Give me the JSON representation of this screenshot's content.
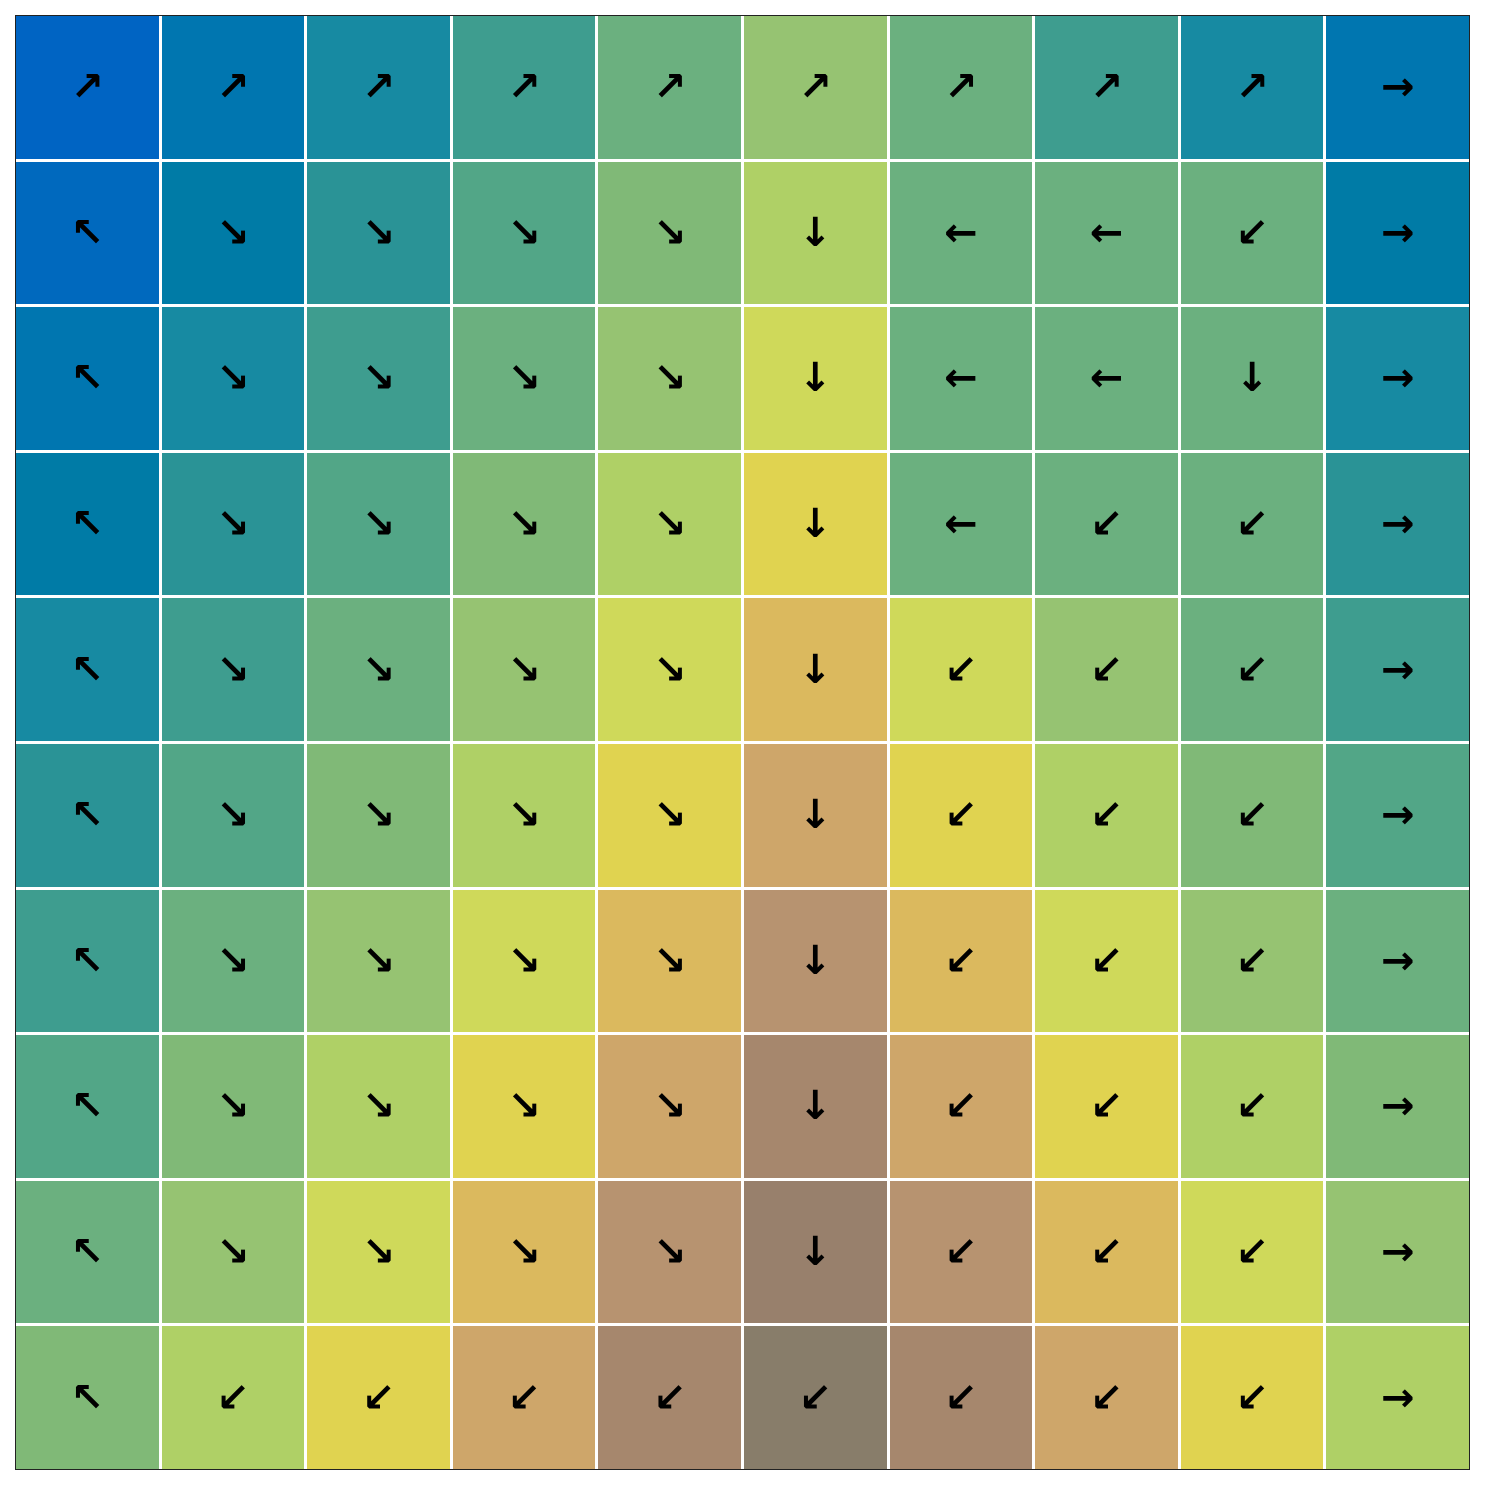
{
  "grid": {
    "rows": 10,
    "cols": 10,
    "colors": [
      [
        "#0064c3",
        "#0076b0",
        "#178aa2",
        "#3e9d8f",
        "#6bb07f",
        "#96c372",
        "#6bb07f",
        "#3e9d8f",
        "#178aa2",
        "#0076b0"
      ],
      [
        "#0069be",
        "#007ba6",
        "#2a9396",
        "#52a687",
        "#80b977",
        "#afd066",
        "#6bb07f",
        "#6bb07f",
        "#6bb07f",
        "#007ba6"
      ],
      [
        "#0076b0",
        "#178aa2",
        "#3e9d8f",
        "#6bb07f",
        "#96c372",
        "#cfd95a",
        "#6bb07f",
        "#6bb07f",
        "#6bb07f",
        "#178aa2"
      ],
      [
        "#007ba6",
        "#2a9396",
        "#52a687",
        "#80b977",
        "#afd066",
        "#e0d350",
        "#6bb07f",
        "#6bb07f",
        "#6bb07f",
        "#2a9396"
      ],
      [
        "#178aa2",
        "#3e9d8f",
        "#6bb07f",
        "#96c372",
        "#cfd95a",
        "#dbb95e",
        "#cfd95a",
        "#96c372",
        "#6bb07f",
        "#3e9d8f"
      ],
      [
        "#2a9396",
        "#52a687",
        "#80b977",
        "#afd066",
        "#e0d350",
        "#cea66a",
        "#e0d350",
        "#afd066",
        "#80b977",
        "#52a687"
      ],
      [
        "#3e9d8f",
        "#6bb07f",
        "#96c372",
        "#cfd95a",
        "#dbb95e",
        "#b79370",
        "#dbb95e",
        "#cfd95a",
        "#96c372",
        "#6bb07f"
      ],
      [
        "#52a687",
        "#80b977",
        "#afd066",
        "#e0d350",
        "#cea66a",
        "#a6876d",
        "#cea66a",
        "#e0d350",
        "#afd066",
        "#80b977"
      ],
      [
        "#6bb07f",
        "#96c372",
        "#cfd95a",
        "#dbb95e",
        "#b79370",
        "#98806c",
        "#b79370",
        "#dbb95e",
        "#cfd95a",
        "#96c372"
      ],
      [
        "#80b977",
        "#afd066",
        "#e0d350",
        "#cea66a",
        "#a6876d",
        "#887d6a",
        "#a6876d",
        "#cea66a",
        "#e0d350",
        "#afd066"
      ]
    ],
    "arrows": [
      [
        "↗",
        "↗",
        "↗",
        "↗",
        "↗",
        "↗",
        "↗",
        "↗",
        "↗",
        "→"
      ],
      [
        "↖",
        "↘",
        "↘",
        "↘",
        "↘",
        "↓",
        "←",
        "←",
        "↙",
        "→"
      ],
      [
        "↖",
        "↘",
        "↘",
        "↘",
        "↘",
        "↓",
        "←",
        "←",
        "↓",
        "→"
      ],
      [
        "↖",
        "↘",
        "↘",
        "↘",
        "↘",
        "↓",
        "←",
        "↙",
        "↙",
        "→"
      ],
      [
        "↖",
        "↘",
        "↘",
        "↘",
        "↘",
        "↓",
        "↙",
        "↙",
        "↙",
        "→"
      ],
      [
        "↖",
        "↘",
        "↘",
        "↘",
        "↘",
        "↓",
        "↙",
        "↙",
        "↙",
        "→"
      ],
      [
        "↖",
        "↘",
        "↘",
        "↘",
        "↘",
        "↓",
        "↙",
        "↙",
        "↙",
        "→"
      ],
      [
        "↖",
        "↘",
        "↘",
        "↘",
        "↘",
        "↓",
        "↙",
        "↙",
        "↙",
        "→"
      ],
      [
        "↖",
        "↘",
        "↘",
        "↘",
        "↘",
        "↓",
        "↙",
        "↙",
        "↙",
        "→"
      ],
      [
        "↖",
        "↙",
        "↙",
        "↙",
        "↙",
        "↙",
        "↙",
        "↙",
        "↙",
        "→"
      ]
    ]
  }
}
